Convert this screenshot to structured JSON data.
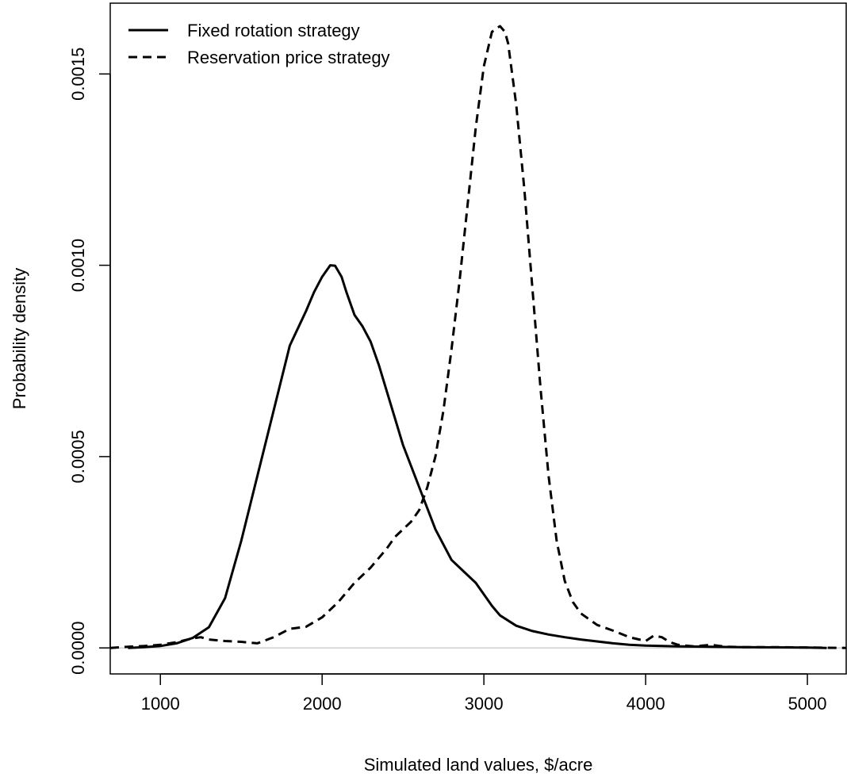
{
  "chart_data": {
    "type": "line",
    "title": "",
    "xlabel": "Simulated land values, $/acre",
    "ylabel": "Probability density",
    "xlim": [
      690,
      5240
    ],
    "ylim": [
      -6.8e-05,
      0.001685
    ],
    "x_ticks": [
      1000,
      2000,
      3000,
      4000,
      5000
    ],
    "x_tick_labels": [
      "1000",
      "2000",
      "3000",
      "4000",
      "5000"
    ],
    "y_ticks": [
      0,
      0.0005,
      0.001,
      0.0015
    ],
    "y_tick_labels": [
      "0.0000",
      "0.0005",
      "0.0010",
      "0.0015"
    ],
    "legend_position": "top-left",
    "zero_line": true,
    "series": [
      {
        "name": "Fixed rotation strategy",
        "style": "solid",
        "color": "#000000",
        "x": [
          800,
          900,
          1000,
          1100,
          1200,
          1300,
          1400,
          1500,
          1600,
          1700,
          1800,
          1900,
          1950,
          2000,
          2050,
          2080,
          2120,
          2150,
          2200,
          2250,
          2300,
          2350,
          2400,
          2450,
          2500,
          2600,
          2700,
          2800,
          2900,
          2950,
          3000,
          3050,
          3100,
          3200,
          3300,
          3400,
          3500,
          3600,
          3700,
          3800,
          3900,
          4000,
          4200,
          4400,
          4600,
          4800,
          5000,
          5120
        ],
        "y": [
          0.0,
          2e-06,
          5e-06,
          1.2e-05,
          2.6e-05,
          5.4e-05,
          0.00013,
          0.00028,
          0.00045,
          0.00062,
          0.00079,
          0.00088,
          0.00093,
          0.00097,
          0.001,
          0.000999,
          0.00097,
          0.00093,
          0.00087,
          0.00084,
          0.0008,
          0.00074,
          0.00067,
          0.0006,
          0.00053,
          0.00042,
          0.00031,
          0.00023,
          0.00019,
          0.00017,
          0.00014,
          0.00011,
          8.5e-05,
          5.8e-05,
          4.4e-05,
          3.5e-05,
          2.8e-05,
          2.2e-05,
          1.7e-05,
          1.2e-05,
          8e-06,
          6e-06,
          4e-06,
          3e-06,
          2e-06,
          1.5e-06,
          1e-06,
          0.0
        ]
      },
      {
        "name": "Reservation price strategy",
        "style": "dashed",
        "color": "#000000",
        "x": [
          690,
          800,
          900,
          1000,
          1100,
          1200,
          1250,
          1300,
          1400,
          1500,
          1600,
          1700,
          1800,
          1900,
          2000,
          2100,
          2200,
          2300,
          2400,
          2450,
          2500,
          2550,
          2600,
          2650,
          2700,
          2750,
          2800,
          2850,
          2900,
          2950,
          3000,
          3050,
          3080,
          3100,
          3130,
          3150,
          3200,
          3250,
          3300,
          3350,
          3400,
          3450,
          3500,
          3550,
          3600,
          3700,
          3800,
          3900,
          4000,
          4050,
          4100,
          4150,
          4200,
          4300,
          4400,
          4500,
          4600,
          4800,
          5000,
          5240
        ],
        "y": [
          0.0,
          3e-06,
          5e-06,
          8e-06,
          1.5e-05,
          2.5e-05,
          2.8e-05,
          2.2e-05,
          1.8e-05,
          1.6e-05,
          1.2e-05,
          2.8e-05,
          5e-05,
          5.5e-05,
          8e-05,
          0.00012,
          0.00017,
          0.00021,
          0.00026,
          0.00029,
          0.00031,
          0.00033,
          0.00036,
          0.00042,
          0.0005,
          0.00062,
          0.00078,
          0.00096,
          0.00116,
          0.00136,
          0.00152,
          0.00161,
          0.00162,
          0.001625,
          0.00161,
          0.00158,
          0.00142,
          0.0012,
          0.00094,
          0.00068,
          0.00045,
          0.00028,
          0.000175,
          0.00012,
          9e-05,
          6e-05,
          4.5e-05,
          2.8e-05,
          1.8e-05,
          3.2e-05,
          2.8e-05,
          1.5e-05,
          8e-06,
          4e-06,
          8e-06,
          3e-06,
          2e-06,
          2e-06,
          1e-06,
          0.0
        ]
      }
    ]
  }
}
